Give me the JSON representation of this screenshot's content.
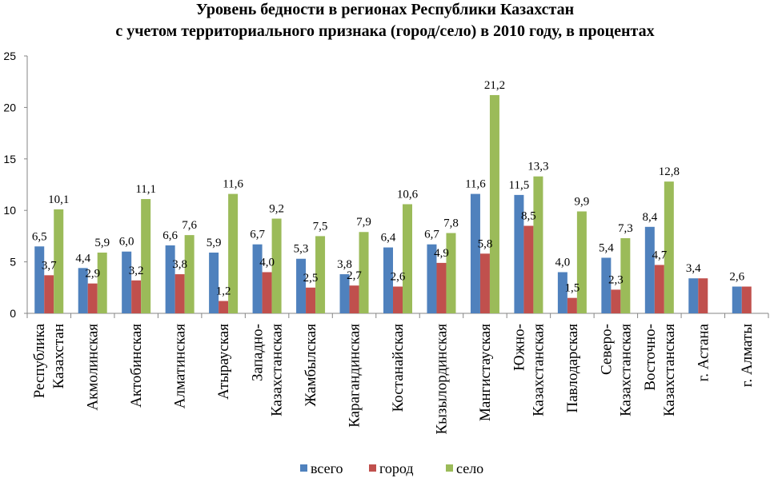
{
  "chart_data": {
    "type": "bar",
    "title": [
      "Уровень бедности в регионах Республики Казахстан",
      "с учетом территориального признака (город/село)  в 2010 году, в  процентах"
    ],
    "xlabel": "",
    "ylabel": "",
    "ylim": [
      0,
      25
    ],
    "yticks": [
      "0",
      "5",
      "10",
      "15",
      "20",
      "25"
    ],
    "grid": false,
    "legend_position": "bottom",
    "categories": [
      [
        "Республика",
        "Казахстан"
      ],
      [
        "Акмолинская"
      ],
      [
        "Актобинская"
      ],
      [
        "Алматинская"
      ],
      [
        "Атырауская"
      ],
      [
        "Западно-",
        "Казахстанская"
      ],
      [
        "Жамбылская"
      ],
      [
        "Карагандинская"
      ],
      [
        "Костанайская"
      ],
      [
        "Кызылординская"
      ],
      [
        "Мангистауская"
      ],
      [
        "Южно-",
        "Казахстанская"
      ],
      [
        "Павлодарская"
      ],
      [
        "Северо-",
        "Казахстанская"
      ],
      [
        "Восточно-",
        "Казахстанская"
      ],
      [
        "г. Астана"
      ],
      [
        "г. Алматы"
      ]
    ],
    "series": [
      {
        "name": "всего",
        "color": "#4F81BD",
        "values": [
          6.5,
          4.4,
          6.0,
          6.6,
          5.9,
          6.7,
          5.3,
          3.8,
          6.4,
          6.7,
          11.6,
          11.5,
          4.0,
          5.4,
          8.4,
          3.4,
          2.6
        ],
        "labels": [
          "6,5",
          "4,4",
          "6,0",
          "6,6",
          "5,9",
          "6,7",
          "5,3",
          "3,8",
          "6,4",
          "6,7",
          "11,6",
          "11,5",
          "4,0",
          "5,4",
          "8,4",
          "3,4",
          "2,6"
        ]
      },
      {
        "name": "город",
        "color": "#C0504D",
        "values": [
          3.7,
          2.9,
          3.2,
          3.8,
          1.2,
          4.0,
          2.5,
          2.7,
          2.6,
          4.9,
          5.8,
          8.5,
          1.5,
          2.3,
          4.7,
          3.4,
          2.6
        ],
        "labels": [
          "3,7",
          "2,9",
          "3,2",
          "3,8",
          "1,2",
          "4,0",
          "2,5",
          "2,7",
          "2,6",
          "4,9",
          "5,8",
          "8,5",
          "1,5",
          "2,3",
          "4,7",
          "",
          ""
        ]
      },
      {
        "name": "село",
        "color": "#9BBB59",
        "values": [
          10.1,
          5.9,
          11.1,
          7.6,
          11.6,
          9.2,
          7.5,
          7.9,
          10.6,
          7.8,
          21.2,
          13.3,
          9.9,
          7.3,
          12.8,
          null,
          null
        ],
        "labels": [
          "10,1",
          "5,9",
          "11,1",
          "7,6",
          "11,6",
          "9,2",
          "7,5",
          "7,9",
          "10,6",
          "7,8",
          "21,2",
          "13,3",
          "9,9",
          "7,3",
          "12,8",
          "",
          ""
        ]
      }
    ]
  }
}
